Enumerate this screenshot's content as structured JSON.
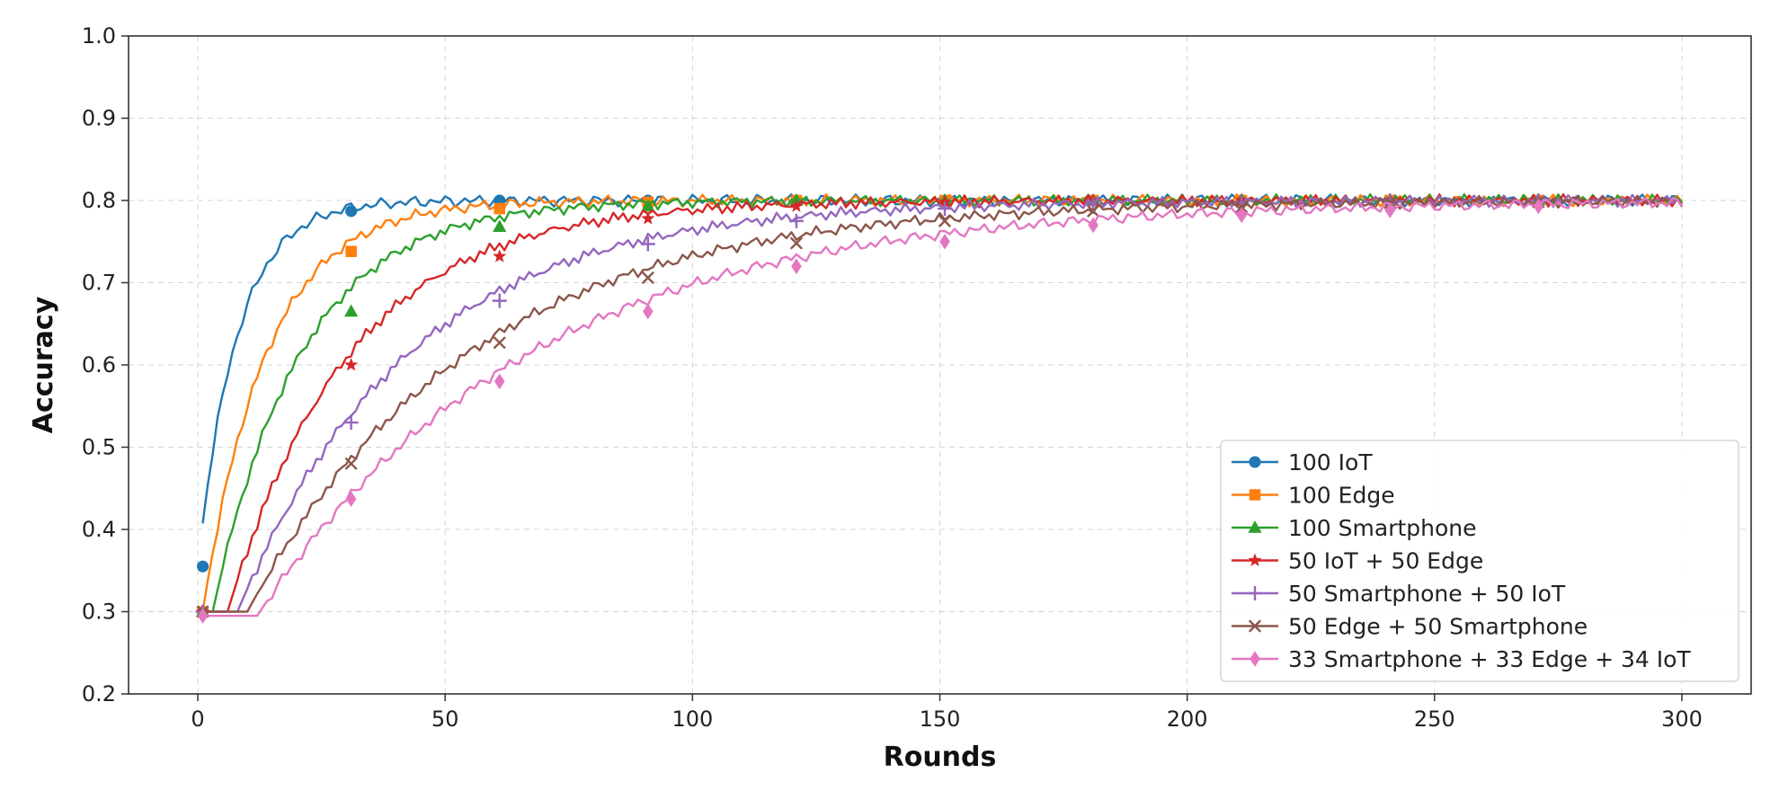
{
  "chart_data": {
    "type": "line",
    "xlabel": "Rounds",
    "ylabel": "Accuracy",
    "xlim": [
      -14,
      314
    ],
    "ylim": [
      0.2,
      1.0
    ],
    "x_ticks": [
      "0",
      "50",
      "100",
      "150",
      "200",
      "250",
      "300"
    ],
    "y_ticks": [
      "0.2",
      "0.3",
      "0.4",
      "0.5",
      "0.6",
      "0.7",
      "0.8",
      "0.9",
      "1.0"
    ],
    "grid": true,
    "legend_position": "bottom-right",
    "marker_x": [
      1,
      31,
      61,
      91,
      121,
      151,
      181,
      211,
      241,
      271
    ],
    "series": [
      {
        "name": "100 IoT",
        "color": "#1f77b4",
        "marker": "circle",
        "start": 0.355,
        "delay": 0,
        "tau": 8,
        "x": [
          1,
          10,
          20,
          31,
          40,
          50,
          61,
          91,
          121,
          151,
          181,
          211,
          241,
          271,
          300
        ],
        "y": [
          0.355,
          0.62,
          0.74,
          0.787,
          0.796,
          0.799,
          0.8,
          0.8,
          0.8,
          0.8,
          0.8,
          0.8,
          0.8,
          0.8,
          0.8
        ]
      },
      {
        "name": "100 Edge",
        "color": "#ff7f0e",
        "marker": "square",
        "start": 0.3,
        "delay": 1,
        "tau": 13,
        "x": [
          1,
          15,
          31,
          45,
          61,
          75,
          91,
          121,
          151,
          181,
          211,
          241,
          271,
          300
        ],
        "y": [
          0.3,
          0.6,
          0.738,
          0.775,
          0.79,
          0.796,
          0.798,
          0.8,
          0.8,
          0.8,
          0.8,
          0.8,
          0.8,
          0.8
        ]
      },
      {
        "name": "100 Smartphone",
        "color": "#2ca02c",
        "marker": "triangle",
        "start": 0.3,
        "delay": 3,
        "tau": 18,
        "x": [
          1,
          20,
          31,
          45,
          61,
          75,
          91,
          121,
          151,
          181,
          211,
          241,
          271,
          300
        ],
        "y": [
          0.3,
          0.57,
          0.665,
          0.725,
          0.768,
          0.785,
          0.793,
          0.8,
          0.8,
          0.8,
          0.8,
          0.8,
          0.8,
          0.8
        ]
      },
      {
        "name": "50 IoT + 50 Edge",
        "color": "#d62728",
        "marker": "star",
        "start": 0.3,
        "delay": 6,
        "tau": 25,
        "x": [
          1,
          20,
          31,
          45,
          61,
          75,
          91,
          121,
          151,
          181,
          211,
          241,
          271,
          300
        ],
        "y": [
          0.3,
          0.48,
          0.6,
          0.68,
          0.732,
          0.76,
          0.778,
          0.793,
          0.798,
          0.8,
          0.8,
          0.8,
          0.8,
          0.8
        ]
      },
      {
        "name": "50 Smartphone + 50 IoT",
        "color": "#9467bd",
        "marker": "plus",
        "start": 0.3,
        "delay": 8,
        "tau": 35,
        "x": [
          1,
          20,
          31,
          45,
          61,
          75,
          91,
          121,
          151,
          181,
          211,
          241,
          271,
          300
        ],
        "y": [
          0.3,
          0.43,
          0.53,
          0.61,
          0.678,
          0.715,
          0.747,
          0.775,
          0.79,
          0.795,
          0.797,
          0.8,
          0.8,
          0.8
        ]
      },
      {
        "name": "50 Edge + 50 Smartphone",
        "color": "#8c564b",
        "marker": "x",
        "start": 0.3,
        "delay": 10,
        "tau": 45,
        "x": [
          1,
          20,
          31,
          45,
          61,
          75,
          91,
          121,
          151,
          181,
          211,
          241,
          271,
          300
        ],
        "y": [
          0.3,
          0.38,
          0.48,
          0.56,
          0.627,
          0.67,
          0.706,
          0.748,
          0.775,
          0.787,
          0.792,
          0.797,
          0.798,
          0.8
        ]
      },
      {
        "name": "33 Smartphone + 33 Edge + 34 IoT",
        "color": "#e377c2",
        "marker": "diamond",
        "start": 0.295,
        "delay": 12,
        "tau": 55,
        "x": [
          1,
          20,
          31,
          45,
          61,
          75,
          91,
          121,
          151,
          181,
          211,
          241,
          271,
          300
        ],
        "y": [
          0.295,
          0.35,
          0.437,
          0.52,
          0.58,
          0.625,
          0.665,
          0.72,
          0.75,
          0.77,
          0.782,
          0.788,
          0.793,
          0.797
        ]
      }
    ]
  }
}
